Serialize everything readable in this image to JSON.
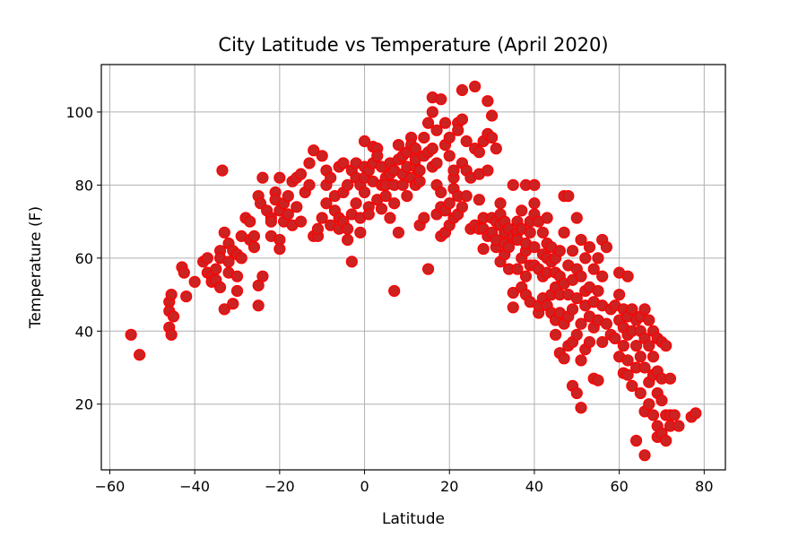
{
  "chart_data": {
    "type": "scatter",
    "title": "City Latitude vs Temperature (April 2020)",
    "xlabel": "Latitude",
    "ylabel": "Temperature (F)",
    "xlim": [
      -62,
      85
    ],
    "ylim": [
      2,
      113
    ],
    "xticks": [
      -60,
      -40,
      -20,
      0,
      20,
      40,
      60,
      80
    ],
    "yticks": [
      20,
      40,
      60,
      80,
      100
    ],
    "grid": true,
    "marker_face_color": "#cc2222",
    "marker_edge_color": "#ff0000",
    "points": [
      [
        -55,
        39
      ],
      [
        -53,
        33.5
      ],
      [
        -46,
        48
      ],
      [
        -45.5,
        50
      ],
      [
        -46,
        45.5
      ],
      [
        -45,
        44
      ],
      [
        -46,
        41
      ],
      [
        -45.5,
        39
      ],
      [
        -43,
        57.5
      ],
      [
        -42.5,
        56
      ],
      [
        -42,
        49.5
      ],
      [
        -40,
        53.5
      ],
      [
        -38,
        59
      ],
      [
        -37,
        60
      ],
      [
        -37,
        56
      ],
      [
        -36,
        55
      ],
      [
        -36,
        53.5
      ],
      [
        -35,
        57
      ],
      [
        -35,
        54
      ],
      [
        -34,
        62
      ],
      [
        -34,
        60
      ],
      [
        -34,
        52
      ],
      [
        -33.5,
        84
      ],
      [
        -33,
        67
      ],
      [
        -33,
        46
      ],
      [
        -32,
        59
      ],
      [
        -32,
        56
      ],
      [
        -32,
        64
      ],
      [
        -31,
        62
      ],
      [
        -31,
        47.5
      ],
      [
        -30,
        55
      ],
      [
        -30,
        51
      ],
      [
        -30,
        61
      ],
      [
        -29,
        66
      ],
      [
        -29,
        60
      ],
      [
        -28,
        71
      ],
      [
        -27,
        70
      ],
      [
        -27,
        65
      ],
      [
        -26,
        66
      ],
      [
        -26,
        63
      ],
      [
        -25,
        47
      ],
      [
        -25,
        52.5
      ],
      [
        -24,
        55
      ],
      [
        -25,
        77
      ],
      [
        -24.5,
        75
      ],
      [
        -24,
        82
      ],
      [
        -23,
        73
      ],
      [
        -22,
        71
      ],
      [
        -22,
        66
      ],
      [
        -22,
        70
      ],
      [
        -21,
        78
      ],
      [
        -21,
        76
      ],
      [
        -20,
        82
      ],
      [
        -20,
        65
      ],
      [
        -20,
        62.5
      ],
      [
        -20,
        73
      ],
      [
        -19,
        75
      ],
      [
        -19,
        70
      ],
      [
        -18,
        72
      ],
      [
        -18,
        77
      ],
      [
        -17,
        81
      ],
      [
        -17,
        69
      ],
      [
        -16,
        74
      ],
      [
        -16,
        82
      ],
      [
        -15,
        83
      ],
      [
        -15,
        70
      ],
      [
        -14,
        78
      ],
      [
        -13,
        80
      ],
      [
        -13,
        86
      ],
      [
        -12,
        89.5
      ],
      [
        -12,
        66
      ],
      [
        -11,
        66
      ],
      [
        -11,
        68
      ],
      [
        -10,
        71
      ],
      [
        -10,
        88
      ],
      [
        -9,
        75
      ],
      [
        -9,
        84
      ],
      [
        -9,
        80
      ],
      [
        -8,
        82
      ],
      [
        -8,
        69
      ],
      [
        -7,
        77
      ],
      [
        -7,
        73
      ],
      [
        -6,
        85
      ],
      [
        -6,
        68
      ],
      [
        -6,
        71
      ],
      [
        -5,
        70
      ],
      [
        -5,
        86
      ],
      [
        -5,
        78
      ],
      [
        -4,
        80
      ],
      [
        -4,
        65
      ],
      [
        -4,
        68
      ],
      [
        -3,
        72
      ],
      [
        -3,
        59
      ],
      [
        -3,
        84
      ],
      [
        -2,
        82
      ],
      [
        -2,
        86
      ],
      [
        -2,
        75
      ],
      [
        -1,
        71
      ],
      [
        -1,
        67
      ],
      [
        -1,
        80
      ],
      [
        0,
        92
      ],
      [
        0,
        82
      ],
      [
        0,
        85
      ],
      [
        0,
        78
      ],
      [
        1,
        74
      ],
      [
        1,
        84
      ],
      [
        1,
        72
      ],
      [
        2,
        86
      ],
      [
        2,
        90.5
      ],
      [
        2,
        81
      ],
      [
        3,
        90
      ],
      [
        3,
        76
      ],
      [
        3,
        88
      ],
      [
        4,
        80
      ],
      [
        4,
        73.5
      ],
      [
        4,
        85
      ],
      [
        5,
        82
      ],
      [
        5,
        77
      ],
      [
        5,
        80
      ],
      [
        6,
        86
      ],
      [
        6,
        71
      ],
      [
        6,
        83
      ],
      [
        7,
        80
      ],
      [
        7,
        84
      ],
      [
        7,
        51
      ],
      [
        7,
        75
      ],
      [
        8,
        67
      ],
      [
        8,
        91
      ],
      [
        8,
        87
      ],
      [
        9,
        80
      ],
      [
        9,
        88
      ],
      [
        9,
        83
      ],
      [
        10,
        85
      ],
      [
        10,
        89
      ],
      [
        10,
        77
      ],
      [
        11,
        93
      ],
      [
        11,
        91
      ],
      [
        11,
        82
      ],
      [
        12,
        80
      ],
      [
        12,
        85
      ],
      [
        12,
        90
      ],
      [
        12,
        87
      ],
      [
        13,
        81
      ],
      [
        13,
        69
      ],
      [
        13,
        84
      ],
      [
        14,
        88
      ],
      [
        14,
        93
      ],
      [
        14,
        71
      ],
      [
        15,
        97
      ],
      [
        15,
        89
      ],
      [
        15,
        57
      ],
      [
        16,
        100
      ],
      [
        16,
        104
      ],
      [
        16,
        85
      ],
      [
        16,
        90
      ],
      [
        17,
        95
      ],
      [
        17,
        72
      ],
      [
        17,
        80
      ],
      [
        17,
        86
      ],
      [
        18,
        66
      ],
      [
        18,
        103.5
      ],
      [
        18,
        78
      ],
      [
        18,
        74
      ],
      [
        19,
        97
      ],
      [
        19,
        91
      ],
      [
        19,
        73
      ],
      [
        19,
        67
      ],
      [
        20,
        93
      ],
      [
        20,
        88
      ],
      [
        20,
        75
      ],
      [
        20,
        69
      ],
      [
        21,
        82
      ],
      [
        21,
        79
      ],
      [
        21,
        84
      ],
      [
        21,
        71
      ],
      [
        22,
        97
      ],
      [
        22,
        95
      ],
      [
        22,
        72
      ],
      [
        22,
        77
      ],
      [
        23,
        98
      ],
      [
        23,
        106
      ],
      [
        23,
        86
      ],
      [
        23,
        74
      ],
      [
        24,
        92
      ],
      [
        24,
        84
      ],
      [
        24,
        77
      ],
      [
        25,
        82
      ],
      [
        25,
        68
      ],
      [
        26,
        107
      ],
      [
        26,
        90
      ],
      [
        26,
        69
      ],
      [
        27,
        83
      ],
      [
        27,
        89
      ],
      [
        27,
        76
      ],
      [
        27,
        68
      ],
      [
        28,
        62.5
      ],
      [
        28,
        92
      ],
      [
        28,
        68
      ],
      [
        28,
        71
      ],
      [
        29,
        103
      ],
      [
        29,
        94
      ],
      [
        29,
        84
      ],
      [
        29,
        66
      ],
      [
        30,
        99
      ],
      [
        30,
        93
      ],
      [
        30,
        71
      ],
      [
        30,
        67
      ],
      [
        31,
        70
      ],
      [
        31,
        63
      ],
      [
        31,
        90
      ],
      [
        31,
        65
      ],
      [
        32,
        59
      ],
      [
        32,
        69
      ],
      [
        32,
        75
      ],
      [
        32,
        72
      ],
      [
        33,
        61
      ],
      [
        33,
        67
      ],
      [
        33,
        70
      ],
      [
        33,
        64
      ],
      [
        34,
        68
      ],
      [
        34,
        57
      ],
      [
        34,
        63
      ],
      [
        35,
        80
      ],
      [
        35,
        50.5
      ],
      [
        35,
        46.5
      ],
      [
        35,
        66
      ],
      [
        36,
        70
      ],
      [
        36,
        67
      ],
      [
        36,
        65
      ],
      [
        36,
        57
      ],
      [
        37,
        52
      ],
      [
        37,
        60
      ],
      [
        37,
        73
      ],
      [
        37,
        68
      ],
      [
        38,
        80
      ],
      [
        38,
        62
      ],
      [
        38,
        55
      ],
      [
        38,
        50
      ],
      [
        38,
        64
      ],
      [
        39,
        48
      ],
      [
        39,
        70
      ],
      [
        39,
        67
      ],
      [
        39,
        58
      ],
      [
        40,
        80
      ],
      [
        40,
        75
      ],
      [
        40,
        72
      ],
      [
        40,
        63
      ],
      [
        40,
        58
      ],
      [
        41,
        45
      ],
      [
        41,
        70
      ],
      [
        41,
        57
      ],
      [
        41,
        47
      ],
      [
        42,
        61
      ],
      [
        42,
        55
      ],
      [
        42,
        49
      ],
      [
        42,
        67
      ],
      [
        43,
        71
      ],
      [
        43,
        56
      ],
      [
        43,
        64
      ],
      [
        43,
        47
      ],
      [
        43,
        60
      ],
      [
        44,
        59
      ],
      [
        44,
        45
      ],
      [
        44,
        50
      ],
      [
        44,
        63
      ],
      [
        45,
        43
      ],
      [
        45,
        52
      ],
      [
        45,
        39
      ],
      [
        45,
        56
      ],
      [
        45,
        60
      ],
      [
        46,
        34
      ],
      [
        46,
        45
      ],
      [
        46,
        50
      ],
      [
        46,
        55
      ],
      [
        46,
        62
      ],
      [
        47,
        77
      ],
      [
        47,
        67
      ],
      [
        47,
        32.5
      ],
      [
        47,
        42
      ],
      [
        47,
        53
      ],
      [
        48,
        77
      ],
      [
        48,
        36
      ],
      [
        48,
        58
      ],
      [
        48,
        44
      ],
      [
        48,
        50
      ],
      [
        49,
        25
      ],
      [
        49,
        37
      ],
      [
        49,
        62
      ],
      [
        49,
        46
      ],
      [
        49,
        54
      ],
      [
        50,
        23
      ],
      [
        50,
        71
      ],
      [
        50,
        39
      ],
      [
        50,
        57
      ],
      [
        50,
        49
      ],
      [
        51,
        19
      ],
      [
        51,
        32
      ],
      [
        51,
        42
      ],
      [
        51,
        65
      ],
      [
        51,
        55
      ],
      [
        52,
        51
      ],
      [
        52,
        47
      ],
      [
        52,
        60
      ],
      [
        52,
        35
      ],
      [
        53,
        63
      ],
      [
        53,
        37
      ],
      [
        53,
        44
      ],
      [
        53,
        52
      ],
      [
        54,
        27
      ],
      [
        54,
        48
      ],
      [
        54,
        57
      ],
      [
        54,
        41
      ],
      [
        55,
        60
      ],
      [
        55,
        26.5
      ],
      [
        55,
        43
      ],
      [
        55,
        51
      ],
      [
        56,
        65
      ],
      [
        56,
        47
      ],
      [
        56,
        37
      ],
      [
        56,
        55
      ],
      [
        57,
        42
      ],
      [
        57,
        63
      ],
      [
        58,
        46
      ],
      [
        58,
        39
      ],
      [
        59,
        38
      ],
      [
        59,
        47
      ],
      [
        60,
        56
      ],
      [
        60,
        33
      ],
      [
        60,
        43
      ],
      [
        60,
        50
      ],
      [
        61,
        28.5
      ],
      [
        61,
        41
      ],
      [
        61,
        46
      ],
      [
        61,
        36
      ],
      [
        62,
        55
      ],
      [
        62,
        39
      ],
      [
        62,
        32
      ],
      [
        62,
        44
      ],
      [
        62,
        28
      ],
      [
        63,
        25
      ],
      [
        63,
        46
      ],
      [
        63,
        40
      ],
      [
        64,
        10
      ],
      [
        64,
        36
      ],
      [
        64,
        43
      ],
      [
        64,
        30
      ],
      [
        65,
        23
      ],
      [
        65,
        40
      ],
      [
        65,
        33
      ],
      [
        65,
        44
      ],
      [
        66,
        6
      ],
      [
        66,
        18
      ],
      [
        66,
        30
      ],
      [
        66,
        38
      ],
      [
        66,
        46
      ],
      [
        67,
        20
      ],
      [
        67,
        26
      ],
      [
        67,
        36
      ],
      [
        67,
        43
      ],
      [
        68,
        17
      ],
      [
        68,
        28
      ],
      [
        68,
        33
      ],
      [
        68,
        40
      ],
      [
        69,
        11
      ],
      [
        69,
        14
      ],
      [
        69,
        23
      ],
      [
        69,
        29
      ],
      [
        69,
        38
      ],
      [
        70,
        12
      ],
      [
        70,
        21
      ],
      [
        70,
        27
      ],
      [
        70,
        37
      ],
      [
        71,
        10
      ],
      [
        71,
        17
      ],
      [
        71,
        36
      ],
      [
        72,
        14
      ],
      [
        72,
        17
      ],
      [
        72,
        27
      ],
      [
        73,
        17
      ],
      [
        74,
        14
      ],
      [
        77,
        16.5
      ],
      [
        78,
        17.5
      ]
    ]
  }
}
